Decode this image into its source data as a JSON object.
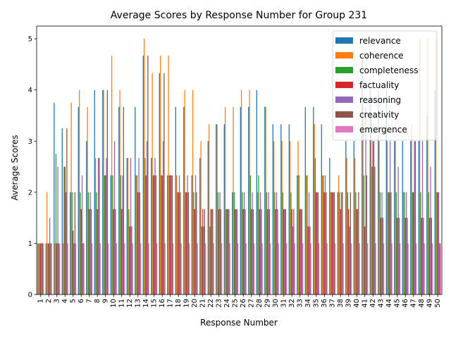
{
  "chart_data": {
    "type": "bar",
    "title": "Average Scores by Response Number for Group 231",
    "xlabel": "Response Number",
    "ylabel": "Average Scores",
    "ylim": [
      0,
      5.25
    ],
    "yticks": [
      0,
      1,
      2,
      3,
      4,
      5
    ],
    "grid": false,
    "legend_placement": "top-right",
    "categories": [
      "1",
      "2",
      "3",
      "4",
      "5",
      "6",
      "7",
      "8",
      "9",
      "10",
      "11",
      "12",
      "13",
      "14",
      "15",
      "16",
      "17",
      "18",
      "19",
      "20",
      "21",
      "22",
      "23",
      "24",
      "25",
      "26",
      "27",
      "28",
      "29",
      "30",
      "31",
      "32",
      "33",
      "34",
      "35",
      "36",
      "37",
      "38",
      "39",
      "40",
      "41",
      "42",
      "43",
      "44",
      "45",
      "46",
      "47",
      "48",
      "49",
      "50"
    ],
    "series": [
      {
        "name": "relevance",
        "color": "#1f77b4",
        "values": [
          1,
          1,
          3.75,
          3.25,
          2,
          3.67,
          3,
          4,
          4,
          2.33,
          3.67,
          2.67,
          3.67,
          4.67,
          2.67,
          4.33,
          2.33,
          3.67,
          3.67,
          2.33,
          2.67,
          3,
          3.33,
          3.33,
          2,
          3.67,
          3.67,
          4,
          3.67,
          3.33,
          3.33,
          3.33,
          2.33,
          3.67,
          3.67,
          3.33,
          2.67,
          2,
          3,
          3,
          4.67,
          4,
          4,
          4,
          3,
          3,
          3,
          3,
          3.5,
          4
        ]
      },
      {
        "name": "coherence",
        "color": "#ff7f0e",
        "values": [
          1,
          2,
          1,
          1,
          3.75,
          4,
          3.67,
          2.67,
          4,
          4.67,
          4,
          2.67,
          2.33,
          5,
          4.33,
          4.67,
          4.67,
          2.33,
          4,
          4,
          3,
          3.33,
          3.33,
          3.67,
          3.67,
          4,
          4,
          2,
          3.67,
          3,
          3,
          3,
          3,
          2.33,
          3.33,
          2.33,
          2,
          2.33,
          2.67,
          2.67,
          3.67,
          3.5,
          3,
          3,
          3,
          2,
          3.33,
          5,
          5,
          5
        ]
      },
      {
        "name": "completeness",
        "color": "#2ca02c",
        "values": [
          1,
          1,
          2.75,
          2.5,
          2,
          2,
          2,
          2,
          2.33,
          2.33,
          2.33,
          1.67,
          2.33,
          2.67,
          2.33,
          2.33,
          2.33,
          2,
          2,
          2,
          1.33,
          1.33,
          2,
          1.67,
          2,
          2,
          2.33,
          2.33,
          2,
          2,
          2,
          2,
          2.33,
          2.33,
          2.67,
          2.33,
          2,
          2,
          2,
          2,
          2.33,
          2.5,
          2,
          2,
          2,
          2,
          2,
          2,
          2,
          2
        ]
      },
      {
        "name": "factuality",
        "color": "#d62728",
        "values": [
          1,
          1,
          1,
          2.5,
          1.25,
          1.67,
          1.67,
          1.67,
          2.33,
          1.67,
          1.67,
          1.33,
          2,
          2.33,
          2.33,
          2.33,
          2.33,
          2,
          2,
          1.67,
          1.67,
          1.67,
          1.67,
          1.67,
          1.67,
          1.67,
          1.67,
          1.67,
          1.67,
          1.67,
          1.67,
          1.67,
          1.67,
          1.33,
          2,
          2,
          2,
          1.67,
          1.67,
          1.67,
          1.33,
          3,
          1.5,
          2,
          1.5,
          1.5,
          2,
          1.5,
          1.5,
          2
        ]
      },
      {
        "name": "reasoning",
        "color": "#9467bd",
        "values": [
          1,
          1.5,
          2.5,
          2,
          1,
          2.33,
          2,
          2.67,
          2.67,
          3,
          2.33,
          2.67,
          2.67,
          3,
          2.67,
          3,
          2.33,
          2.33,
          2.33,
          2.33,
          1.33,
          1.67,
          2,
          1.67,
          1.67,
          2,
          2,
          2,
          2,
          2,
          1.67,
          1.33,
          1.67,
          2,
          2,
          2.33,
          2,
          2,
          1.33,
          1.67,
          3.67,
          3,
          2,
          3,
          2.5,
          2,
          3,
          3,
          2.5,
          2
        ]
      },
      {
        "name": "creativity",
        "color": "#8c564b",
        "values": [
          1,
          1,
          1,
          3.25,
          2,
          1,
          1.67,
          2.67,
          4,
          1.67,
          3.67,
          1.33,
          2,
          4.67,
          2.33,
          4.33,
          2.33,
          2,
          2,
          2,
          1.67,
          1.67,
          1.67,
          1.67,
          1.67,
          1.67,
          1.67,
          1.67,
          1.67,
          1.67,
          1.67,
          1.67,
          1.67,
          1.33,
          2,
          2,
          2,
          2,
          2,
          2,
          2.33,
          2.5,
          1.5,
          2,
          1.5,
          1.5,
          3,
          1.5,
          1.5,
          1
        ]
      },
      {
        "name": "emergence",
        "color": "#e377c2",
        "values": [
          1,
          1,
          1,
          1,
          1,
          1,
          1,
          1,
          1,
          1,
          1,
          1,
          1,
          1,
          1,
          1,
          1,
          1,
          1,
          1,
          1,
          1,
          1,
          1,
          1,
          1,
          1,
          1,
          1,
          1,
          1,
          1,
          1,
          1,
          1,
          1,
          1,
          1,
          1,
          1,
          1,
          1,
          1,
          1,
          1,
          1,
          1,
          1,
          1,
          1
        ]
      }
    ]
  }
}
